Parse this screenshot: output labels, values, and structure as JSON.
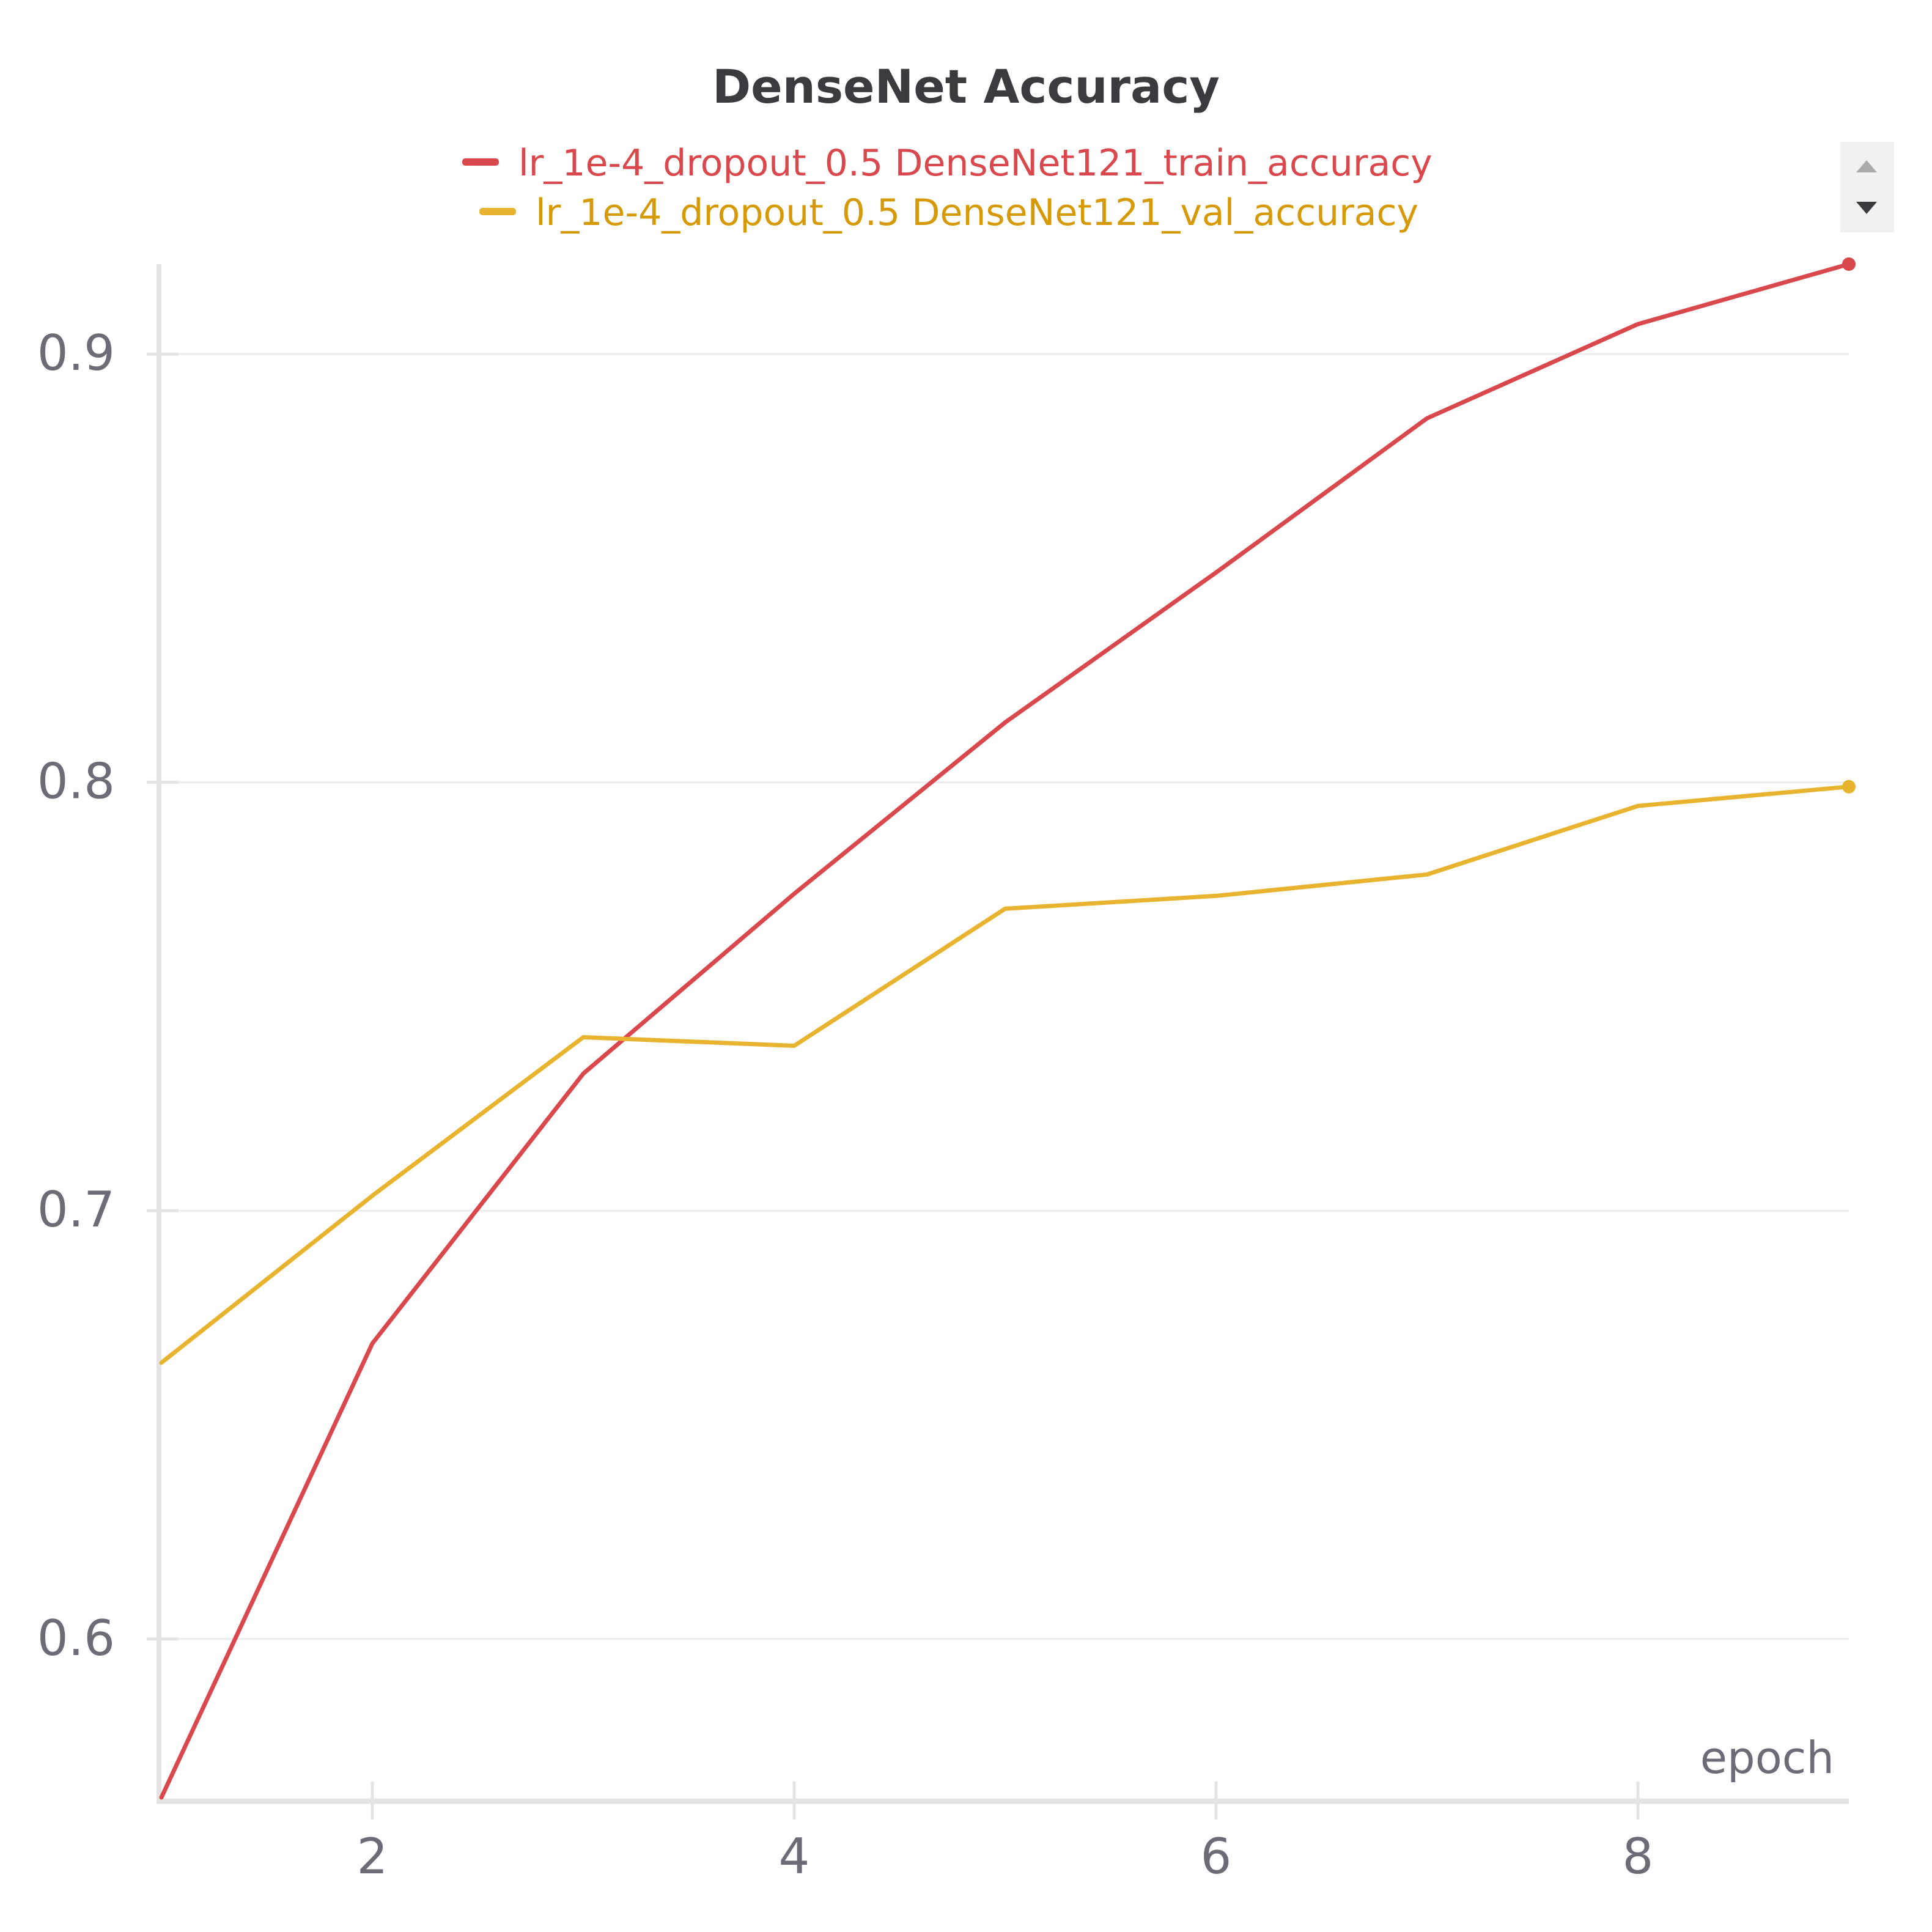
{
  "chart_data": {
    "type": "line",
    "title": "DenseNet Accuracy",
    "xlabel": "epoch",
    "ylabel": "",
    "x": [
      1,
      2,
      3,
      4,
      5,
      6,
      7,
      8,
      9
    ],
    "xlim": [
      1,
      9
    ],
    "ylim": [
      0.563,
      0.921
    ],
    "xticks": [
      2,
      4,
      6,
      8
    ],
    "yticks": [
      0.6,
      0.7,
      0.8,
      0.9
    ],
    "xtick_labels": [
      "2",
      "4",
      "6",
      "8"
    ],
    "ytick_labels": [
      "0.6",
      "0.7",
      "0.8",
      "0.9"
    ],
    "grid": true,
    "legend_position": "top-center",
    "series": [
      {
        "name": "lr_1e-4_dropout_0.5 DenseNet121_train_accuracy",
        "color": "#d9484c",
        "values": [
          0.563,
          0.669,
          0.732,
          0.774,
          0.814,
          0.849,
          0.885,
          0.907,
          0.921
        ]
      },
      {
        "name": "lr_1e-4_dropout_0.5 DenseNet121_val_accuracy",
        "color": "#e8b32e",
        "values": [
          0.6645,
          0.7035,
          0.7405,
          0.7385,
          0.7705,
          0.7735,
          0.7785,
          0.7945,
          0.799
        ]
      }
    ]
  },
  "colors": {
    "legend_val_text": "#d69a08",
    "axis": "#e4e4e4",
    "grid": "#ececec",
    "tick_text": "#6b6c75",
    "title_text": "#3a3b3f"
  },
  "legend_scroll": {
    "up_icon": "triangle-up",
    "down_icon": "triangle-down"
  }
}
